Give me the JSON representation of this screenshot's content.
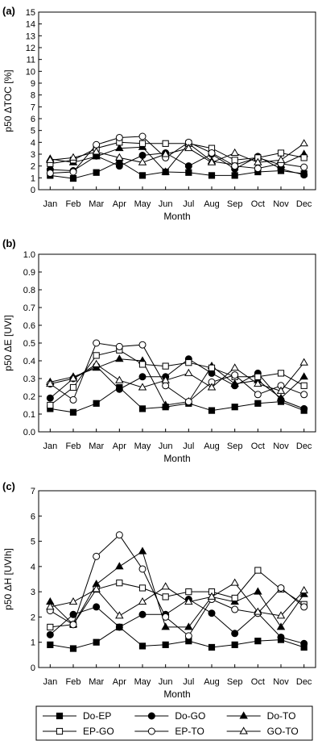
{
  "chart_data": [
    {
      "type": "line",
      "panel": "(a)",
      "ylabel": "p50 ΔTOC [%]",
      "xlabel": "Month",
      "ylim": [
        0,
        15
      ],
      "yticks": [
        0,
        1,
        2,
        3,
        4,
        5,
        6,
        7,
        8,
        9,
        10,
        11,
        12,
        13,
        14,
        15
      ],
      "categories": [
        "Jan",
        "Feb",
        "Mar",
        "Apr",
        "May",
        "Jun",
        "Jul",
        "Aug",
        "Sep",
        "Oct",
        "Nov",
        "Dec"
      ],
      "series": [
        {
          "name": "Do-EP",
          "marker": "square-filled",
          "values": [
            1.2,
            0.95,
            1.45,
            2.4,
            1.2,
            1.5,
            1.45,
            1.2,
            1.2,
            1.5,
            1.6,
            1.35
          ]
        },
        {
          "name": "Do-GO",
          "marker": "circle-filled",
          "values": [
            1.7,
            1.6,
            2.85,
            2.0,
            2.9,
            3.1,
            2.0,
            3.0,
            1.75,
            2.8,
            1.75,
            1.25
          ]
        },
        {
          "name": "Do-TO",
          "marker": "triangle-filled",
          "values": [
            2.6,
            2.3,
            2.8,
            3.5,
            3.6,
            1.5,
            3.9,
            2.4,
            2.1,
            2.7,
            2.1,
            3.0
          ]
        },
        {
          "name": "EP-GO",
          "marker": "square-open",
          "values": [
            2.2,
            2.5,
            3.5,
            4.0,
            3.9,
            3.9,
            3.9,
            3.5,
            2.5,
            2.7,
            3.1,
            2.7
          ]
        },
        {
          "name": "EP-TO",
          "marker": "circle-open",
          "values": [
            1.4,
            1.5,
            3.8,
            4.4,
            4.5,
            2.7,
            4.0,
            3.1,
            2.0,
            1.8,
            2.2,
            1.9
          ]
        },
        {
          "name": "GO-TO",
          "marker": "triangle-open",
          "values": [
            2.5,
            2.7,
            3.2,
            2.7,
            2.3,
            3.0,
            3.5,
            2.3,
            3.1,
            2.3,
            2.5,
            3.9
          ]
        }
      ]
    },
    {
      "type": "line",
      "panel": "(b)",
      "ylabel": "p50 ΔE [UVI]",
      "xlabel": "Month",
      "ylim": [
        0,
        1.0
      ],
      "yticks": [
        0.0,
        0.1,
        0.2,
        0.3,
        0.4,
        0.5,
        0.6,
        0.7,
        0.8,
        0.9,
        1.0
      ],
      "categories": [
        "Jan",
        "Feb",
        "Mar",
        "Apr",
        "May",
        "Jun",
        "Jul",
        "Aug",
        "Sep",
        "Oct",
        "Nov",
        "Dec"
      ],
      "series": [
        {
          "name": "Do-EP",
          "marker": "square-filled",
          "values": [
            0.13,
            0.11,
            0.16,
            0.25,
            0.13,
            0.14,
            0.16,
            0.12,
            0.14,
            0.16,
            0.17,
            0.12
          ]
        },
        {
          "name": "Do-GO",
          "marker": "circle-filled",
          "values": [
            0.19,
            0.3,
            0.37,
            0.24,
            0.31,
            0.31,
            0.41,
            0.33,
            0.26,
            0.33,
            0.18,
            0.13
          ]
        },
        {
          "name": "Do-TO",
          "marker": "triangle-filled",
          "values": [
            0.28,
            0.31,
            0.36,
            0.41,
            0.4,
            0.15,
            0.17,
            0.37,
            0.27,
            0.29,
            0.19,
            0.31
          ]
        },
        {
          "name": "EP-GO",
          "marker": "square-open",
          "values": [
            0.15,
            0.25,
            0.43,
            0.46,
            0.38,
            0.37,
            0.39,
            0.36,
            0.31,
            0.31,
            0.33,
            0.26
          ]
        },
        {
          "name": "EP-TO",
          "marker": "circle-open",
          "values": [
            0.27,
            0.18,
            0.5,
            0.48,
            0.49,
            0.26,
            0.17,
            0.28,
            0.32,
            0.21,
            0.26,
            0.21
          ]
        },
        {
          "name": "GO-TO",
          "marker": "triangle-open",
          "values": [
            0.27,
            0.3,
            0.38,
            0.29,
            0.25,
            0.29,
            0.33,
            0.25,
            0.36,
            0.27,
            0.23,
            0.39
          ]
        }
      ]
    },
    {
      "type": "line",
      "panel": "(c)",
      "ylabel": "p50 ΔH [UVIh]",
      "xlabel": "Month",
      "ylim": [
        0,
        7
      ],
      "yticks": [
        0,
        1,
        2,
        3,
        4,
        5,
        6,
        7
      ],
      "categories": [
        "Jan",
        "Feb",
        "Mar",
        "Apr",
        "May",
        "Jun",
        "Jul",
        "Aug",
        "Sep",
        "Oct",
        "Nov",
        "Dec"
      ],
      "series": [
        {
          "name": "Do-EP",
          "marker": "square-filled",
          "values": [
            0.9,
            0.75,
            1.0,
            1.6,
            0.85,
            0.9,
            1.05,
            0.8,
            0.9,
            1.05,
            1.1,
            0.8
          ]
        },
        {
          "name": "Do-GO",
          "marker": "circle-filled",
          "values": [
            1.3,
            2.1,
            2.4,
            1.6,
            2.1,
            2.1,
            2.7,
            2.15,
            1.35,
            2.15,
            1.2,
            0.95
          ]
        },
        {
          "name": "Do-TO",
          "marker": "triangle-filled",
          "values": [
            2.6,
            1.7,
            3.3,
            4.0,
            4.6,
            1.6,
            1.6,
            2.8,
            2.6,
            3.0,
            1.6,
            2.9
          ]
        },
        {
          "name": "EP-GO",
          "marker": "square-open",
          "values": [
            1.6,
            1.7,
            3.1,
            3.35,
            3.15,
            2.8,
            3.0,
            3.0,
            2.75,
            3.85,
            3.1,
            2.5
          ]
        },
        {
          "name": "EP-TO",
          "marker": "circle-open",
          "values": [
            2.25,
            1.7,
            4.4,
            5.25,
            3.9,
            2.0,
            1.25,
            2.7,
            2.3,
            2.15,
            3.15,
            2.4
          ]
        },
        {
          "name": "GO-TO",
          "marker": "triangle-open",
          "values": [
            2.4,
            2.6,
            3.1,
            2.05,
            2.6,
            3.2,
            2.6,
            2.8,
            3.35,
            2.2,
            2.05,
            3.05
          ]
        }
      ]
    }
  ]
}
